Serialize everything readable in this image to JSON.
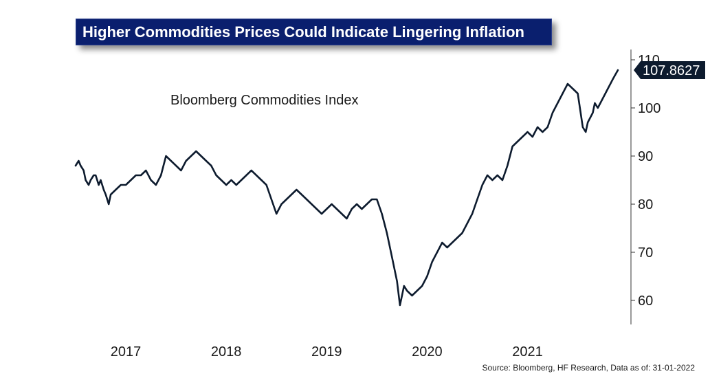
{
  "title": "Higher Commodities Prices Could Indicate Lingering Inflation",
  "source": "Source: Bloomberg, HF Research, Data as of: 31-01-2022",
  "colors": {
    "title_bg": "#0a1f6e",
    "line": "#0d1b2e",
    "label_bg": "#0d1b2e"
  },
  "chart_data": {
    "type": "line",
    "title": "Bloomberg Commodities Index",
    "xlabel": "",
    "ylabel": "",
    "x_range": [
      2016.55,
      2022.08
    ],
    "ylim": [
      55,
      111
    ],
    "x_ticks": [
      2017,
      2018,
      2019,
      2020,
      2021
    ],
    "x_tick_labels": [
      "2017",
      "2018",
      "2019",
      "2020",
      "2021"
    ],
    "y_ticks": [
      60,
      70,
      80,
      90,
      100,
      110
    ],
    "y_tick_labels": [
      "60",
      "70",
      "80",
      "90",
      "100",
      "110"
    ],
    "last_value_label": "107.8627",
    "series": [
      {
        "name": "Bloomberg Commodities Index",
        "x": [
          2016.55,
          2016.58,
          2016.6,
          2016.63,
          2016.65,
          2016.68,
          2016.7,
          2016.73,
          2016.75,
          2016.78,
          2016.8,
          2016.83,
          2016.85,
          2016.88,
          2016.9,
          2016.95,
          2017.0,
          2017.05,
          2017.1,
          2017.15,
          2017.2,
          2017.25,
          2017.3,
          2017.35,
          2017.4,
          2017.45,
          2017.5,
          2017.55,
          2017.6,
          2017.65,
          2017.7,
          2017.75,
          2017.8,
          2017.85,
          2017.9,
          2017.95,
          2018.0,
          2018.05,
          2018.1,
          2018.15,
          2018.2,
          2018.25,
          2018.3,
          2018.35,
          2018.4,
          2018.45,
          2018.5,
          2018.55,
          2018.6,
          2018.65,
          2018.7,
          2018.75,
          2018.8,
          2018.85,
          2018.9,
          2018.95,
          2019.0,
          2019.05,
          2019.1,
          2019.15,
          2019.2,
          2019.25,
          2019.3,
          2019.35,
          2019.4,
          2019.45,
          2019.5,
          2019.55,
          2019.6,
          2019.65,
          2019.7,
          2019.75,
          2019.78,
          2019.8,
          2019.82,
          2019.85,
          2019.9,
          2019.95,
          2020.0,
          2020.05,
          2020.1,
          2020.15,
          2020.2,
          2020.25,
          2020.3,
          2020.35,
          2020.4,
          2020.45,
          2020.5,
          2020.55,
          2020.6,
          2020.65,
          2020.7,
          2020.75,
          2020.8,
          2020.85,
          2020.9,
          2020.95,
          2021.0,
          2021.05,
          2021.1,
          2021.15,
          2021.2,
          2021.25,
          2021.3,
          2021.35,
          2021.4,
          2021.45,
          2021.5,
          2021.55,
          2021.6,
          2021.63,
          2021.65,
          2021.7,
          2021.72,
          2021.75,
          2021.8,
          2021.85,
          2021.9,
          2021.95
        ],
        "y": [
          88,
          89,
          88,
          87,
          85,
          84,
          85,
          86,
          86,
          84,
          85,
          83,
          82,
          80,
          82,
          83,
          84,
          84,
          85,
          86,
          86,
          87,
          85,
          84,
          86,
          90,
          89,
          88,
          87,
          89,
          90,
          91,
          90,
          89,
          88,
          86,
          85,
          84,
          85,
          84,
          85,
          86,
          87,
          86,
          85,
          84,
          81,
          78,
          80,
          81,
          82,
          83,
          82,
          81,
          80,
          79,
          78,
          79,
          80,
          79,
          78,
          77,
          79,
          80,
          79,
          80,
          81,
          81,
          78,
          74,
          69,
          64,
          59,
          61,
          63,
          62,
          61,
          62,
          63,
          65,
          68,
          70,
          72,
          71,
          72,
          73,
          74,
          76,
          78,
          81,
          84,
          86,
          85,
          86,
          85,
          88,
          92,
          93,
          94,
          95,
          94,
          96,
          95,
          96,
          99,
          101,
          103,
          105,
          104,
          103,
          96,
          95,
          97,
          99,
          101,
          100,
          102,
          104,
          106,
          107.86
        ]
      }
    ]
  }
}
